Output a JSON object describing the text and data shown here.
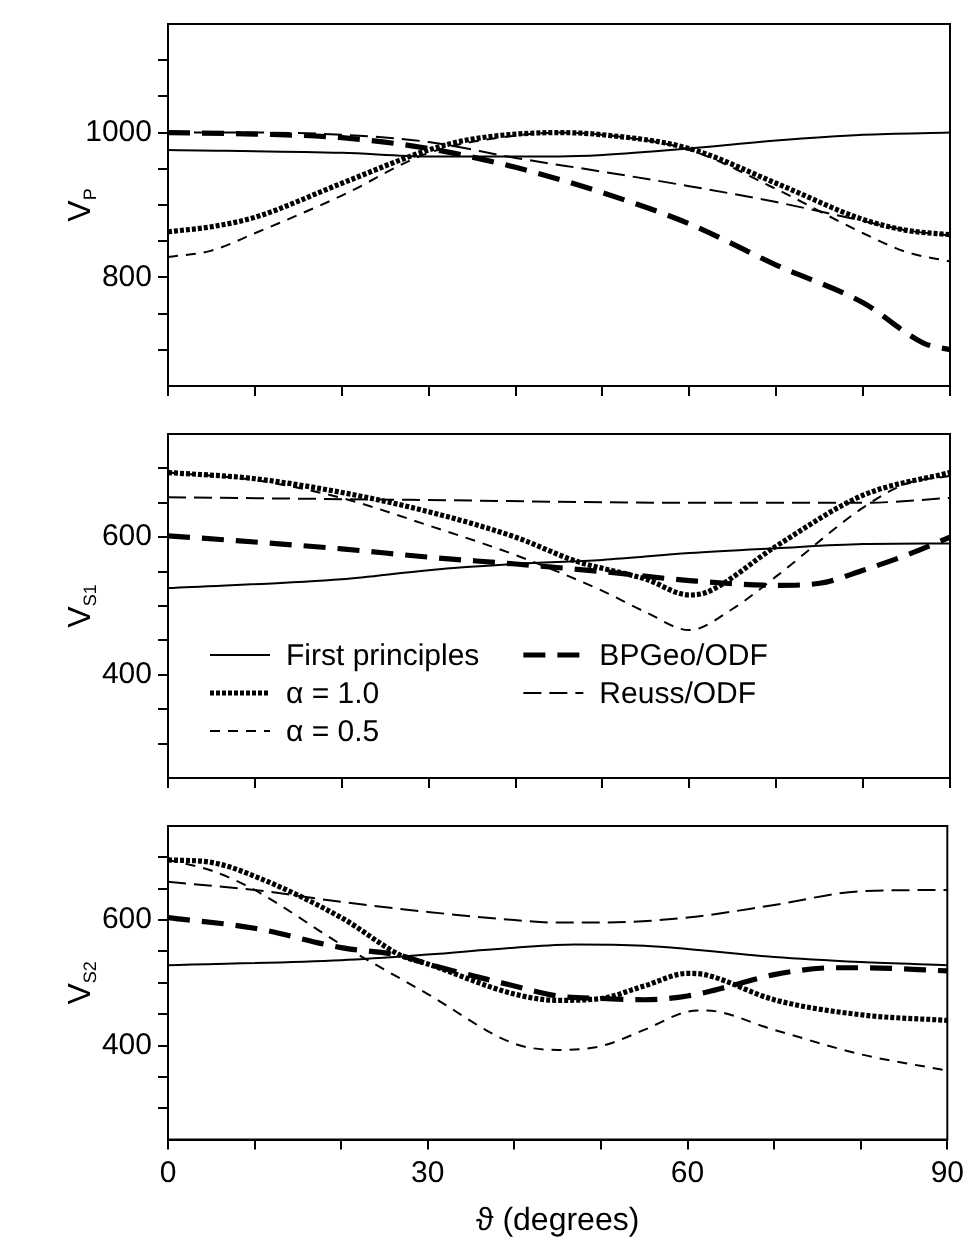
{
  "chart_data": [
    {
      "type": "line",
      "ylabel": "V$_{P}$",
      "xlim": [
        0,
        90
      ],
      "xticks": [
        0,
        {
          "value": 10,
          "label": null
        },
        {
          "value": 20,
          "label": null
        },
        30,
        {
          "value": 40,
          "label": null
        },
        {
          "value": 50,
          "label": null
        },
        60,
        {
          "value": 70,
          "label": null
        },
        {
          "value": 80,
          "label": null
        },
        90
      ],
      "ylim": [
        650,
        1150
      ],
      "yticks": [
        {
          "value": 700,
          "label": null
        },
        {
          "value": 750,
          "label": null
        },
        800,
        {
          "value": 850,
          "label": null
        },
        {
          "value": 900,
          "label": null
        },
        {
          "value": 950,
          "label": null
        },
        1000,
        {
          "value": 1050,
          "label": null
        },
        {
          "value": 1100,
          "label": null
        }
      ],
      "tick_labels": "y",
      "grid": false,
      "legend": false,
      "marker": "none",
      "series": [
        {
          "color": "#000000",
          "line_style": "solid",
          "x": [
            0,
            20,
            30,
            45,
            50,
            60,
            70,
            80,
            90
          ],
          "values": [
            976,
            972,
            967,
            967,
            969,
            978,
            989,
            997,
            1000
          ]
        },
        {
          "color": "#000000",
          "line_style": "dotted",
          "x": [
            0,
            5,
            10,
            20,
            30,
            35,
            45,
            50,
            60,
            70,
            80,
            85,
            90
          ],
          "values": [
            863,
            870,
            883,
            930,
            976,
            991,
            1000,
            997,
            978,
            930,
            880,
            865,
            859
          ]
        },
        {
          "color": "#000000",
          "line_style": "dashed",
          "x": [
            0,
            5,
            10,
            20,
            30,
            40,
            45,
            50,
            60,
            70,
            80,
            85,
            90
          ],
          "values": [
            828,
            837,
            861,
            913,
            972,
            996,
            1000,
            997,
            976,
            922,
            861,
            835,
            822
          ]
        },
        {
          "color": "#000000",
          "line_style": "dashed",
          "x": [
            0,
            10,
            20,
            30,
            40,
            50,
            60,
            70,
            80,
            87,
            90
          ],
          "values": [
            1000,
            998,
            993,
            978,
            952,
            917,
            874,
            817,
            765,
            709,
            700
          ]
        },
        {
          "color": "#000000",
          "line_style": "dashed",
          "x": [
            0,
            10,
            20,
            30,
            40,
            50,
            60,
            70,
            80,
            85,
            90
          ],
          "values": [
            1000,
            1000,
            997,
            987,
            965,
            946,
            926,
            904,
            878,
            865,
            858
          ]
        }
      ]
    },
    {
      "type": "line",
      "ylabel": "V$_{S1}$",
      "xlim": [
        0,
        90
      ],
      "xticks": [
        0,
        {
          "value": 10,
          "label": null
        },
        {
          "value": 20,
          "label": null
        },
        30,
        {
          "value": 40,
          "label": null
        },
        {
          "value": 50,
          "label": null
        },
        60,
        {
          "value": 70,
          "label": null
        },
        {
          "value": 80,
          "label": null
        },
        90
      ],
      "ylim": [
        250,
        750
      ],
      "yticks": [
        {
          "value": 300,
          "label": null
        },
        {
          "value": 350,
          "label": null
        },
        400,
        {
          "value": 450,
          "label": null
        },
        {
          "value": 500,
          "label": null
        },
        {
          "value": 550,
          "label": null
        },
        600,
        {
          "value": 650,
          "label": null
        },
        {
          "value": 700,
          "label": null
        }
      ],
      "tick_labels": "y",
      "grid": false,
      "legend": "bottom left",
      "marker": "none",
      "series": [
        {
          "name": "First principles",
          "color": "#000000",
          "line_style": "solid",
          "x": [
            0,
            20,
            30,
            40,
            50,
            60,
            70,
            80,
            90
          ],
          "values": [
            526,
            539,
            552,
            561,
            567,
            577,
            584,
            590,
            591
          ]
        },
        {
          "name": "α = 1.0",
          "color": "#000000",
          "line_style": "dotted",
          "x": [
            0,
            10,
            20,
            30,
            40,
            47,
            55,
            60,
            62,
            70,
            80,
            90
          ],
          "values": [
            694,
            685,
            665,
            637,
            600,
            565,
            539,
            516,
            520,
            587,
            661,
            694
          ]
        },
        {
          "name": "α = 0.5",
          "color": "#000000",
          "line_style": "dashed",
          "x": [
            0,
            10,
            20,
            30,
            40,
            50,
            55,
            60,
            65,
            70,
            80,
            85,
            90
          ],
          "values": [
            694,
            683,
            657,
            617,
            574,
            522,
            491,
            465,
            496,
            543,
            643,
            678,
            689
          ]
        },
        {
          "name": "BPGeo/ODF",
          "color": "#000000",
          "line_style": "dashed",
          "x": [
            0,
            10,
            20,
            30,
            40,
            50,
            60,
            70,
            75,
            80,
            85,
            90
          ],
          "values": [
            602,
            593,
            583,
            571,
            561,
            550,
            537,
            530,
            533,
            552,
            574,
            600
          ]
        },
        {
          "name": "Reuss/ODF",
          "color": "#000000",
          "line_style": "dashed",
          "x": [
            0,
            30,
            60,
            80,
            90
          ],
          "values": [
            658,
            654,
            650,
            650,
            657
          ]
        }
      ]
    },
    {
      "type": "line",
      "ylabel": "V$_{S2}$",
      "xlabel": "ϑ (degrees)",
      "xlim": [
        0,
        90
      ],
      "xticks": [
        0,
        {
          "value": 10,
          "label": null
        },
        {
          "value": 20,
          "label": null
        },
        30,
        {
          "value": 40,
          "label": null
        },
        {
          "value": 50,
          "label": null
        },
        60,
        {
          "value": 70,
          "label": null
        },
        {
          "value": 80,
          "label": null
        },
        90
      ],
      "ylim": [
        250,
        750
      ],
      "yticks": [
        {
          "value": 300,
          "label": null
        },
        {
          "value": 350,
          "label": null
        },
        400,
        {
          "value": 450,
          "label": null
        },
        {
          "value": 500,
          "label": null
        },
        {
          "value": 550,
          "label": null
        },
        600,
        {
          "value": 650,
          "label": null
        },
        {
          "value": 700,
          "label": null
        }
      ],
      "grid": false,
      "legend": false,
      "marker": "none",
      "series": [
        {
          "color": "#000000",
          "line_style": "solid",
          "x": [
            0,
            20,
            30,
            40,
            47,
            55,
            60,
            70,
            80,
            90
          ],
          "values": [
            528,
            536,
            545,
            556,
            561,
            559,
            554,
            541,
            533,
            528
          ]
        },
        {
          "color": "#000000",
          "line_style": "dotted",
          "x": [
            0,
            5,
            10,
            20,
            27,
            30,
            40,
            45,
            50,
            55,
            60,
            62,
            70,
            80,
            90
          ],
          "values": [
            696,
            692,
            670,
            604,
            543,
            530,
            482,
            472,
            475,
            495,
            515,
            513,
            473,
            449,
            440
          ]
        },
        {
          "color": "#000000",
          "line_style": "dashed",
          "x": [
            0,
            5,
            10,
            20,
            30,
            40,
            45,
            50,
            55,
            60,
            62,
            70,
            80,
            90
          ],
          "values": [
            696,
            679,
            648,
            561,
            482,
            403,
            393,
            399,
            425,
            454,
            456,
            425,
            386,
            360
          ]
        },
        {
          "color": "#000000",
          "line_style": "dashed",
          "x": [
            0,
            10,
            20,
            27,
            30,
            40,
            45,
            50,
            55,
            60,
            65,
            70,
            77,
            80,
            90
          ],
          "values": [
            604,
            587,
            556,
            543,
            530,
            495,
            479,
            475,
            473,
            479,
            495,
            513,
            524,
            524,
            519
          ]
        },
        {
          "color": "#000000",
          "line_style": "dashed",
          "x": [
            0,
            10,
            20,
            30,
            40,
            45,
            50,
            60,
            70,
            80,
            90
          ],
          "values": [
            661,
            648,
            629,
            613,
            600,
            596,
            596,
            604,
            624,
            646,
            648
          ]
        }
      ]
    }
  ]
}
